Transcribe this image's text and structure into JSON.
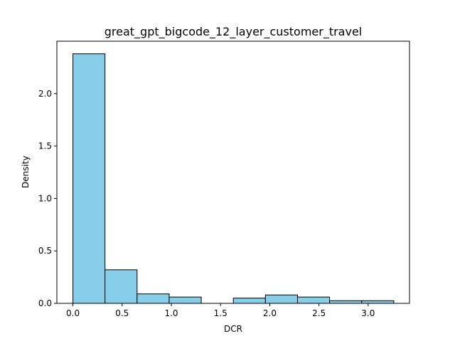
{
  "chart_data": {
    "type": "bar",
    "title": "great_gpt_bigcode_12_layer_customer_travel",
    "xlabel": "DCR",
    "ylabel": "Density",
    "xlim": [
      -0.163,
      3.42
    ],
    "ylim": [
      0,
      2.5
    ],
    "bin_edges": [
      0.0,
      0.326,
      0.652,
      0.978,
      1.304,
      1.63,
      1.956,
      2.282,
      2.608,
      2.934,
      3.26
    ],
    "values": [
      2.38,
      0.32,
      0.09,
      0.06,
      0.0,
      0.05,
      0.08,
      0.06,
      0.025,
      0.025
    ],
    "xticks": [
      0.0,
      0.5,
      1.0,
      1.5,
      2.0,
      2.5,
      3.0
    ],
    "xtick_labels": [
      "0.0",
      "0.5",
      "1.0",
      "1.5",
      "2.0",
      "2.5",
      "3.0"
    ],
    "yticks": [
      0.0,
      0.5,
      1.0,
      1.5,
      2.0
    ],
    "ytick_labels": [
      "0.0",
      "0.5",
      "1.0",
      "1.5",
      "2.0"
    ],
    "bar_color": "#87ceeb",
    "edge_color": "#000000",
    "grid": false
  }
}
